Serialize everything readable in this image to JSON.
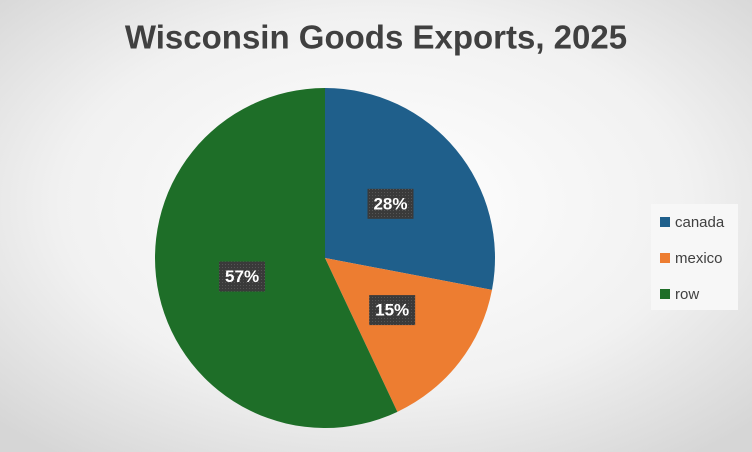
{
  "chart_data": {
    "type": "pie",
    "title": "Wisconsin Goods Exports, 2025",
    "categories": [
      "canada",
      "mexico",
      "row"
    ],
    "values": [
      28,
      15,
      57
    ],
    "value_labels": [
      "28%",
      "15%",
      "57%"
    ],
    "colors": [
      "#1f5f8b",
      "#ed7d31",
      "#1e6e28"
    ],
    "legend": "right"
  }
}
